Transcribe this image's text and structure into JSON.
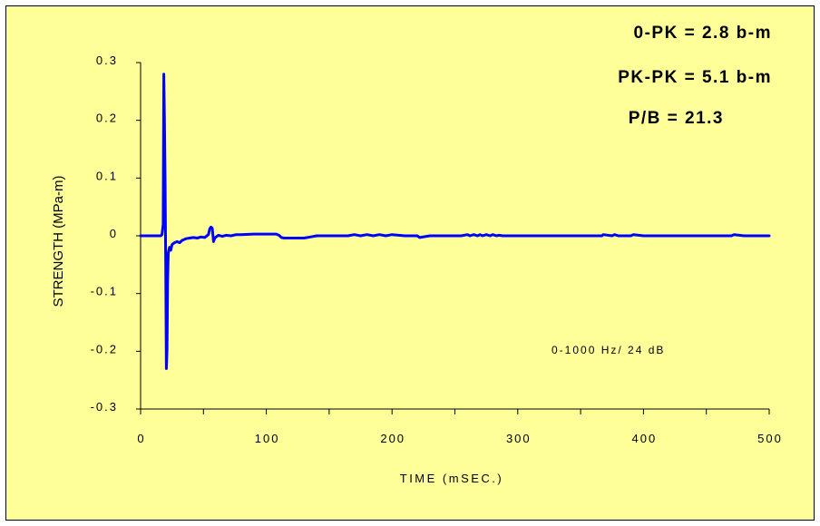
{
  "chart_data": {
    "type": "line",
    "title": "",
    "xlabel": "TIME (mSEC.)",
    "ylabel": "STRENGTH (MPa-m)",
    "xlim": [
      0,
      500
    ],
    "ylim": [
      -0.3,
      0.3
    ],
    "x_ticks": [
      "0",
      "100",
      "200",
      "300",
      "400",
      "500"
    ],
    "y_ticks": [
      "0.3",
      "0.2",
      "0.1",
      "0",
      "-0.1",
      "-0.2",
      "-0.3"
    ],
    "grid": false,
    "legend": "none",
    "line_color": "#0000ff",
    "background_color": "#ffff99",
    "annotations": {
      "zero_peak": "0-PK = 2.8 b-m",
      "peak_peak": "PK-PK = 5.1 b-m",
      "p_over_b": "P/B = 21.3",
      "bandwidth": "0-1000 Hz/ 24 dB"
    },
    "series": [
      {
        "x": [
          0,
          16,
          17,
          18,
          18.5,
          19,
          19.5,
          20,
          20.5,
          21,
          21.5,
          22,
          23,
          24,
          25,
          27,
          29,
          31,
          33,
          36,
          39,
          42,
          45,
          48,
          51,
          54,
          55,
          56,
          57,
          58,
          59,
          60,
          62,
          65,
          68,
          72,
          76,
          80,
          90,
          100,
          108,
          110,
          112,
          114,
          120,
          130,
          135,
          140,
          150,
          165,
          170,
          175,
          180,
          185,
          190,
          195,
          200,
          210,
          220,
          222,
          230,
          240,
          255,
          260,
          262,
          265,
          268,
          270,
          272,
          275,
          278,
          280,
          283,
          285,
          288,
          300,
          320,
          340,
          360,
          367,
          368,
          375,
          377,
          380,
          390,
          392,
          400,
          420,
          450,
          470,
          472,
          480,
          500
        ],
        "y": [
          0,
          0,
          0.002,
          0.02,
          0.28,
          0.2,
          0.1,
          -0.05,
          -0.23,
          -0.2,
          -0.08,
          -0.03,
          -0.02,
          -0.025,
          -0.015,
          -0.012,
          -0.01,
          -0.012,
          -0.008,
          -0.005,
          -0.004,
          -0.003,
          -0.004,
          -0.002,
          -0.003,
          0.002,
          0.012,
          0.015,
          0.013,
          -0.01,
          -0.004,
          -0.002,
          0.001,
          -0.001,
          0.001,
          0,
          0.002,
          0.002,
          0.003,
          0.003,
          0.003,
          0.001,
          -0.003,
          -0.004,
          -0.004,
          -0.004,
          -0.002,
          0,
          0,
          0,
          0.002,
          0,
          0.002,
          0,
          0.002,
          0,
          0.002,
          0,
          0,
          -0.003,
          0,
          0,
          0,
          0.002,
          0,
          0.002,
          0,
          0.002,
          0,
          0.002,
          0,
          0.002,
          0,
          0.001,
          0,
          0,
          0,
          0,
          0,
          0,
          0.002,
          0,
          0.002,
          0,
          0,
          0.002,
          0,
          0,
          0,
          0,
          0.002,
          0,
          0
        ]
      }
    ]
  }
}
